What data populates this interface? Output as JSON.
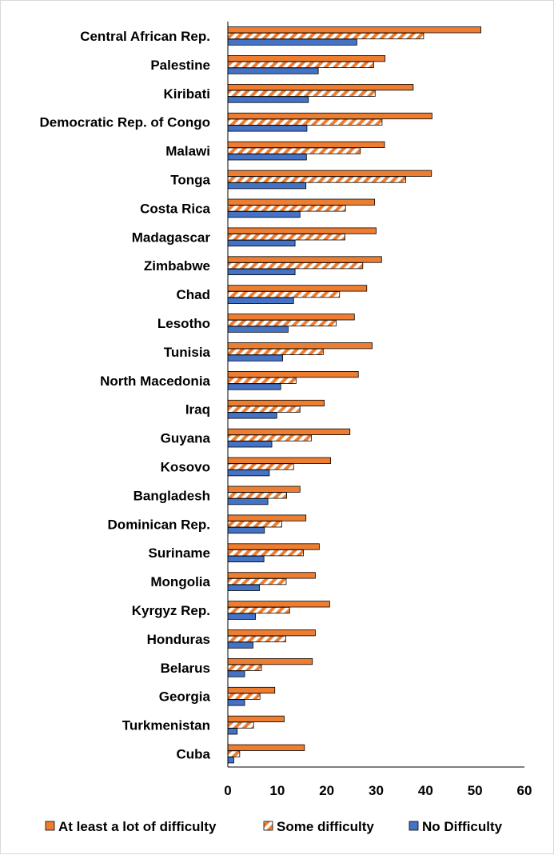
{
  "chart_data": {
    "type": "bar",
    "orientation": "horizontal",
    "categories": [
      "Central African Rep.",
      "Palestine",
      "Kiribati",
      "Democratic Rep. of Congo",
      "Malawi",
      "Tonga",
      "Costa Rica",
      "Madagascar",
      "Zimbabwe",
      "Chad",
      "Lesotho",
      "Tunisia",
      "North Macedonia",
      "Iraq",
      "Guyana",
      "Kosovo",
      "Bangladesh",
      "Dominican Rep.",
      "Suriname",
      "Mongolia",
      "Kyrgyz Rep.",
      "Honduras",
      "Belarus",
      "Georgia",
      "Turkmenistan",
      "Cuba"
    ],
    "series": [
      {
        "name": "At least a lot of difficulty",
        "color": "#ed7d31",
        "values": [
          51.2,
          31.8,
          37.5,
          41.3,
          31.7,
          41.2,
          29.7,
          30.0,
          31.1,
          28.1,
          25.6,
          29.2,
          26.4,
          19.5,
          24.7,
          20.8,
          14.6,
          15.8,
          18.5,
          17.7,
          20.6,
          17.7,
          17.1,
          9.5,
          11.4,
          15.5
        ]
      },
      {
        "name": "Some difficulty",
        "color": "#ed7d31",
        "values": [
          39.6,
          29.5,
          29.8,
          31.2,
          26.8,
          36.0,
          23.8,
          23.7,
          27.3,
          22.6,
          21.9,
          19.3,
          13.8,
          14.6,
          16.9,
          13.3,
          11.9,
          10.9,
          15.3,
          11.8,
          12.5,
          11.7,
          6.8,
          6.5,
          5.2,
          2.4
        ]
      },
      {
        "name": "No Difficulty",
        "color": "#4472c4",
        "values": [
          26.1,
          18.3,
          16.3,
          16.0,
          15.9,
          15.8,
          14.6,
          13.6,
          13.6,
          13.3,
          12.2,
          11.1,
          10.7,
          9.9,
          8.9,
          8.4,
          8.1,
          7.4,
          7.3,
          6.4,
          5.6,
          5.1,
          3.4,
          3.4,
          1.9,
          1.2
        ]
      }
    ],
    "xlim": [
      0,
      60
    ],
    "xticks": [
      "0",
      "10",
      "20",
      "30",
      "40",
      "50",
      "60"
    ],
    "grid": false,
    "legend": "bottom",
    "title": "",
    "xlabel": "",
    "ylabel": ""
  }
}
